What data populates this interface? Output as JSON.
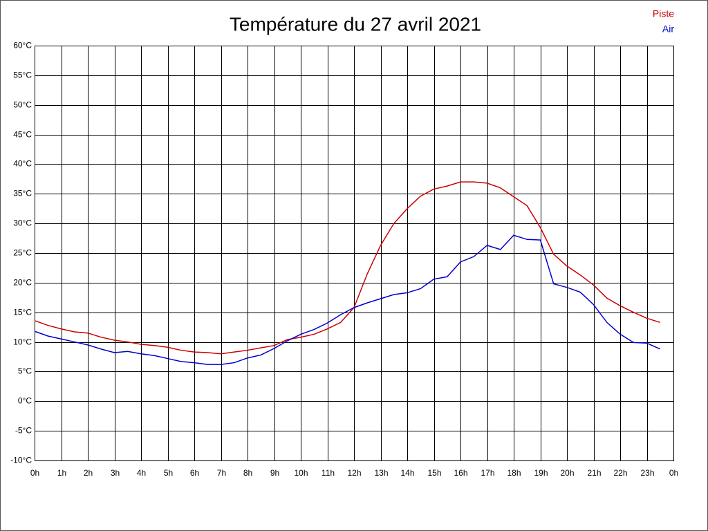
{
  "chart_data": {
    "type": "line",
    "title": "Température du 27 avril 2021",
    "x": [
      0,
      0.5,
      1,
      1.5,
      2,
      2.5,
      3,
      3.5,
      4,
      4.5,
      5,
      5.5,
      6,
      6.5,
      7,
      7.5,
      8,
      8.5,
      9,
      9.5,
      10,
      10.5,
      11,
      11.5,
      12,
      12.5,
      13,
      13.5,
      14,
      14.5,
      15,
      15.5,
      16,
      16.5,
      17,
      17.5,
      18,
      18.5,
      19,
      19.5,
      20,
      20.5,
      21,
      21.5,
      22,
      22.5,
      23,
      23.5
    ],
    "series": [
      {
        "name": "Piste",
        "color": "#cc0000",
        "values": [
          13.6,
          12.8,
          12.2,
          11.7,
          11.5,
          10.8,
          10.3,
          10.0,
          9.6,
          9.4,
          9.1,
          8.6,
          8.3,
          8.2,
          8.0,
          8.3,
          8.6,
          9.0,
          9.4,
          10.4,
          10.8,
          11.3,
          12.2,
          13.3,
          15.8,
          21.5,
          26.3,
          30.0,
          32.5,
          34.6,
          35.8,
          36.3,
          37.0,
          37.0,
          36.8,
          36.0,
          34.5,
          33.0,
          29.3,
          24.8,
          22.8,
          21.3,
          19.6,
          17.4,
          16.1,
          15.0,
          14.0,
          13.3
        ]
      },
      {
        "name": "Air",
        "color": "#0000cc",
        "values": [
          11.8,
          11.0,
          10.5,
          10.0,
          9.5,
          8.8,
          8.2,
          8.4,
          8.0,
          7.7,
          7.2,
          6.7,
          6.5,
          6.2,
          6.2,
          6.5,
          7.3,
          7.8,
          8.9,
          10.2,
          11.3,
          12.1,
          13.2,
          14.6,
          15.8,
          16.6,
          17.3,
          18.0,
          18.3,
          19.0,
          20.6,
          21.0,
          23.5,
          24.4,
          26.3,
          25.6,
          28.0,
          27.3,
          27.2,
          19.8,
          19.2,
          18.4,
          16.3,
          13.3,
          11.3,
          9.9,
          9.8,
          8.8
        ]
      }
    ],
    "xlim": [
      0,
      24
    ],
    "xticks": [
      {
        "value": 0,
        "label": "0h"
      },
      {
        "value": 1,
        "label": "1h"
      },
      {
        "value": 2,
        "label": "2h"
      },
      {
        "value": 3,
        "label": "3h"
      },
      {
        "value": 4,
        "label": "4h"
      },
      {
        "value": 5,
        "label": "5h"
      },
      {
        "value": 6,
        "label": "6h"
      },
      {
        "value": 7,
        "label": "7h"
      },
      {
        "value": 8,
        "label": "8h"
      },
      {
        "value": 9,
        "label": "9h"
      },
      {
        "value": 10,
        "label": "10h"
      },
      {
        "value": 11,
        "label": "11h"
      },
      {
        "value": 12,
        "label": "12h"
      },
      {
        "value": 13,
        "label": "13h"
      },
      {
        "value": 14,
        "label": "14h"
      },
      {
        "value": 15,
        "label": "15h"
      },
      {
        "value": 16,
        "label": "16h"
      },
      {
        "value": 17,
        "label": "17h"
      },
      {
        "value": 18,
        "label": "18h"
      },
      {
        "value": 19,
        "label": "19h"
      },
      {
        "value": 20,
        "label": "20h"
      },
      {
        "value": 21,
        "label": "21h"
      },
      {
        "value": 22,
        "label": "22h"
      },
      {
        "value": 23,
        "label": "23h"
      },
      {
        "value": 24,
        "label": "0h"
      }
    ],
    "ylim": [
      -10,
      60
    ],
    "yticks": [
      {
        "value": -10,
        "label": "-10°C"
      },
      {
        "value": -5,
        "label": "-5°C"
      },
      {
        "value": 0,
        "label": "0°C"
      },
      {
        "value": 5,
        "label": "5°C"
      },
      {
        "value": 10,
        "label": "10°C"
      },
      {
        "value": 15,
        "label": "15°C"
      },
      {
        "value": 20,
        "label": "20°C"
      },
      {
        "value": 25,
        "label": "25°C"
      },
      {
        "value": 30,
        "label": "30°C"
      },
      {
        "value": 35,
        "label": "35°C"
      },
      {
        "value": 40,
        "label": "40°C"
      },
      {
        "value": 45,
        "label": "45°C"
      },
      {
        "value": 50,
        "label": "50°C"
      },
      {
        "value": 55,
        "label": "55°C"
      },
      {
        "value": 60,
        "label": "60°C"
      }
    ],
    "grid": true,
    "zero_line": true,
    "legend": "top-right"
  }
}
